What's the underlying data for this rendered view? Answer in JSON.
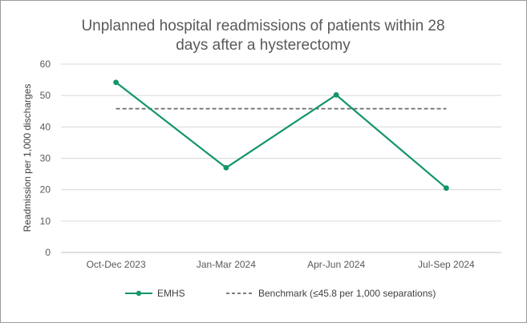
{
  "chart_data": {
    "type": "line",
    "title_lines": [
      "Unplanned hospital readmissions of patients within 28",
      "days after a hysterectomy"
    ],
    "ylabel": "Readmission per 1,000 discharges",
    "xlabel": "",
    "categories": [
      "Oct-Dec 2023",
      "Jan-Mar 2024",
      "Apr-Jun 2024",
      "Jul-Sep 2024"
    ],
    "ylim": [
      0,
      60
    ],
    "yticks": [
      "0",
      "10",
      "20",
      "30",
      "40",
      "50",
      "60"
    ],
    "grid": true,
    "legend_position": "bottom",
    "series": [
      {
        "name": "EMHS",
        "values": [
          54.2,
          27.0,
          50.2,
          20.5
        ],
        "color": "#12956b",
        "style": "solid-markers"
      },
      {
        "name": "Benchmark (≤45.8 per 1,000 separations)",
        "values": [
          45.8,
          45.8,
          45.8,
          45.8
        ],
        "color": "#6b6b6b",
        "style": "dashed"
      }
    ]
  }
}
